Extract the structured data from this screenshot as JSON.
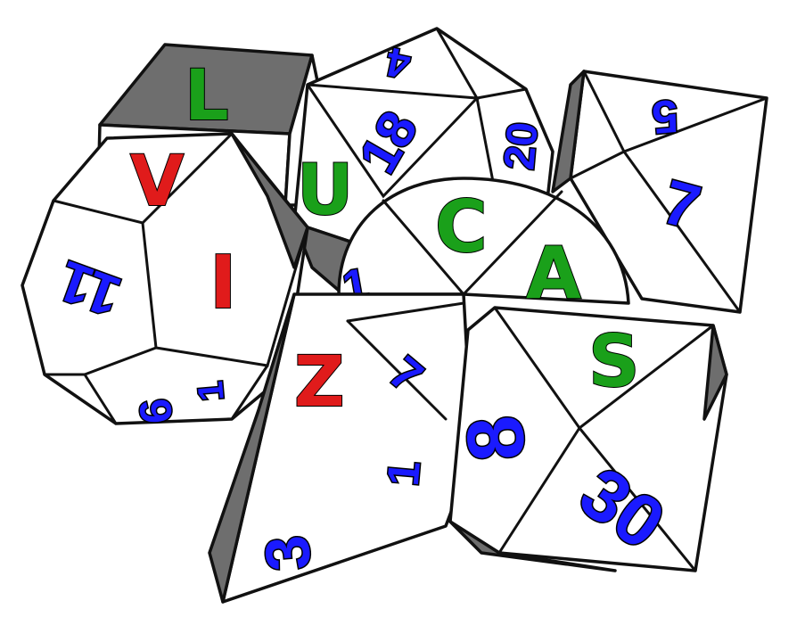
{
  "logo": {
    "letters_name": [
      "V",
      "I",
      "Z"
    ],
    "letters_surname": [
      "L",
      "U",
      "C",
      "A",
      "S"
    ],
    "colors": {
      "name_letters": "#e01b1b",
      "surname_letters": "#1aa01a",
      "die_numbers": "#1a1aff",
      "die_face": "#ffffff",
      "die_shadow": "#6e6e6e",
      "outline": "#111111"
    }
  },
  "dice": {
    "d4_numbers": [
      "4",
      "18",
      "20"
    ],
    "d12_numbers": [
      "11",
      "6",
      "1"
    ],
    "d8_numbers": [
      "5",
      "7",
      "1"
    ],
    "d10_numbers": [
      "1",
      "7",
      "1"
    ],
    "d20_numbers": [
      "3",
      "1"
    ],
    "d30_numbers": [
      "8",
      "30",
      "8"
    ]
  }
}
